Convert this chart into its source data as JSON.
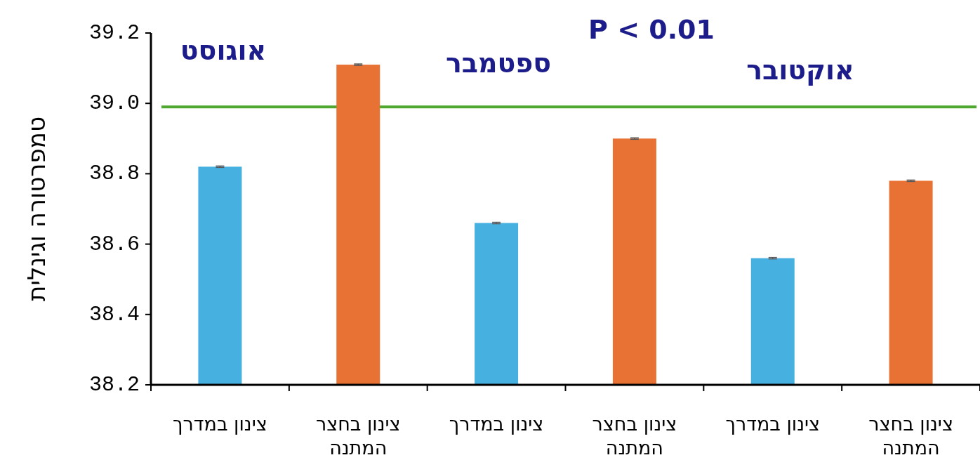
{
  "chart_data": {
    "type": "bar",
    "ylabel": "טמפרטורה וגינלית",
    "categories": [
      "צינון במדרך",
      "צינון בחצר המתנה",
      "צינון במדרך",
      "צינון בחצר המתנה",
      "צינון במדרך",
      "צינון בחצר המתנה"
    ],
    "values": [
      38.82,
      39.11,
      38.66,
      38.9,
      38.56,
      38.78
    ],
    "colors": [
      "#46b0e0",
      "#e87234",
      "#46b0e0",
      "#e87234",
      "#46b0e0",
      "#e87234"
    ],
    "errors": [
      0.002,
      0.002,
      0.002,
      0.002,
      0.002,
      0.002
    ],
    "ylim": [
      38.2,
      39.2
    ],
    "yticks": [
      {
        "value": 38.2,
        "label": "38.2"
      },
      {
        "value": 38.4,
        "label": "38.4"
      },
      {
        "value": 38.6,
        "label": "38.6"
      },
      {
        "value": 38.8,
        "label": "38.8"
      },
      {
        "value": 39.0,
        "label": "39.0"
      },
      {
        "value": 39.2,
        "label": "39.2"
      }
    ],
    "ref_lines": [
      {
        "axis": "y",
        "value": 38.99,
        "color": "#4ea72e"
      }
    ],
    "annotations": [
      "אוגוסט",
      "ספטמבר",
      "אוקטובר",
      "P < 0.01"
    ]
  }
}
